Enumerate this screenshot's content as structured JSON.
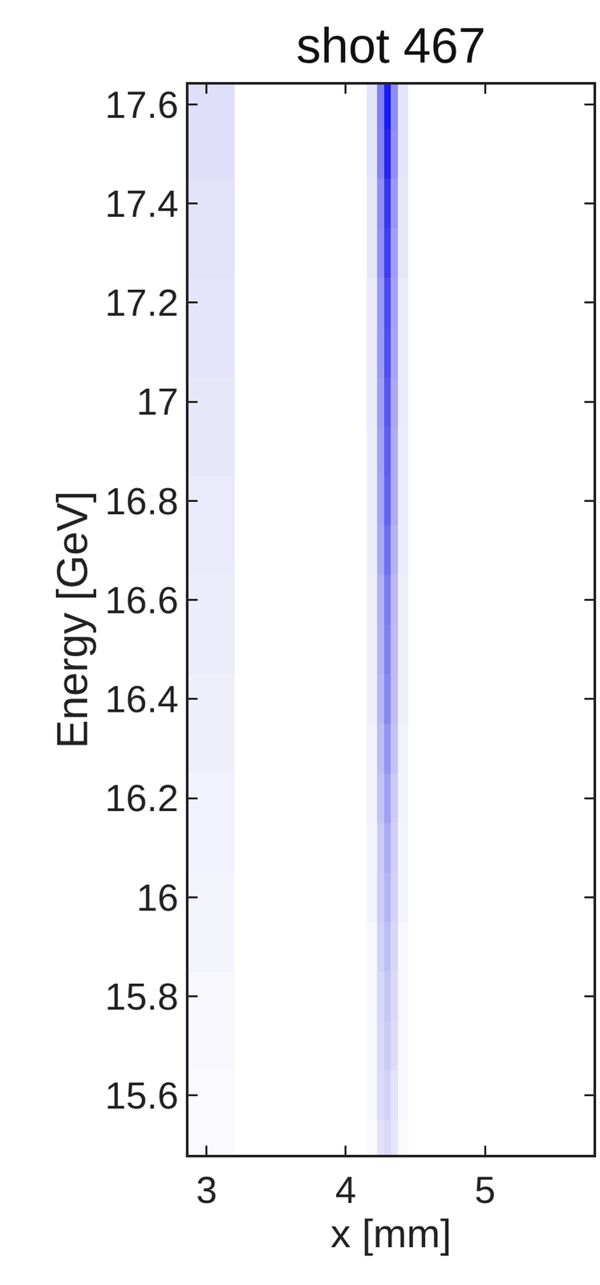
{
  "chart_data": {
    "type": "heatmap",
    "title": "shot 467",
    "x_label": "x [mm]",
    "y_label": "Energy [GeV]",
    "color": "#1a1aee",
    "x": [
      3.0,
      3.4,
      3.8,
      4.1,
      4.2,
      4.25,
      4.3,
      4.35,
      4.4,
      4.5,
      4.8,
      5.2,
      5.6
    ],
    "y": [
      15.5,
      15.6,
      15.7,
      15.8,
      15.9,
      16.0,
      16.1,
      16.2,
      16.3,
      16.4,
      16.5,
      16.6,
      16.7,
      16.8,
      16.9,
      17.0,
      17.1,
      17.2,
      17.3,
      17.4,
      17.5,
      17.6
    ],
    "z": [
      [
        0.1,
        0.08,
        0.08,
        0.08,
        0.1,
        0.19,
        0.22,
        0.18,
        0.1,
        0.08,
        0.08,
        0.08,
        0.08
      ],
      [
        0.1,
        0.08,
        0.08,
        0.08,
        0.11,
        0.21,
        0.25,
        0.19,
        0.11,
        0.08,
        0.08,
        0.08,
        0.08
      ],
      [
        0.11,
        0.08,
        0.08,
        0.08,
        0.11,
        0.22,
        0.28,
        0.21,
        0.11,
        0.08,
        0.08,
        0.08,
        0.08
      ],
      [
        0.11,
        0.08,
        0.08,
        0.08,
        0.11,
        0.23,
        0.3,
        0.22,
        0.11,
        0.08,
        0.08,
        0.08,
        0.08
      ],
      [
        0.12,
        0.08,
        0.08,
        0.08,
        0.11,
        0.25,
        0.33,
        0.23,
        0.11,
        0.08,
        0.08,
        0.08,
        0.08
      ],
      [
        0.12,
        0.08,
        0.08,
        0.08,
        0.12,
        0.27,
        0.37,
        0.25,
        0.12,
        0.08,
        0.08,
        0.08,
        0.08
      ],
      [
        0.13,
        0.08,
        0.08,
        0.08,
        0.12,
        0.28,
        0.4,
        0.26,
        0.12,
        0.08,
        0.08,
        0.08,
        0.08
      ],
      [
        0.13,
        0.08,
        0.08,
        0.08,
        0.13,
        0.31,
        0.45,
        0.28,
        0.13,
        0.08,
        0.08,
        0.08,
        0.08
      ],
      [
        0.14,
        0.08,
        0.08,
        0.08,
        0.13,
        0.33,
        0.5,
        0.31,
        0.13,
        0.08,
        0.08,
        0.08,
        0.08
      ],
      [
        0.14,
        0.08,
        0.08,
        0.08,
        0.14,
        0.36,
        0.55,
        0.33,
        0.14,
        0.08,
        0.08,
        0.08,
        0.08
      ],
      [
        0.15,
        0.08,
        0.08,
        0.08,
        0.14,
        0.37,
        0.58,
        0.34,
        0.14,
        0.08,
        0.08,
        0.08,
        0.08
      ],
      [
        0.15,
        0.08,
        0.08,
        0.08,
        0.14,
        0.38,
        0.6,
        0.35,
        0.14,
        0.08,
        0.08,
        0.08,
        0.08
      ],
      [
        0.16,
        0.08,
        0.08,
        0.08,
        0.15,
        0.41,
        0.65,
        0.37,
        0.15,
        0.08,
        0.08,
        0.08,
        0.08
      ],
      [
        0.16,
        0.08,
        0.08,
        0.08,
        0.15,
        0.43,
        0.7,
        0.4,
        0.15,
        0.08,
        0.08,
        0.08,
        0.08
      ],
      [
        0.17,
        0.08,
        0.08,
        0.08,
        0.15,
        0.44,
        0.72,
        0.4,
        0.15,
        0.08,
        0.08,
        0.08,
        0.08
      ],
      [
        0.17,
        0.08,
        0.08,
        0.08,
        0.16,
        0.46,
        0.75,
        0.42,
        0.16,
        0.08,
        0.08,
        0.08,
        0.08
      ],
      [
        0.18,
        0.08,
        0.08,
        0.08,
        0.16,
        0.47,
        0.78,
        0.43,
        0.16,
        0.08,
        0.08,
        0.08,
        0.08
      ],
      [
        0.18,
        0.08,
        0.08,
        0.08,
        0.16,
        0.48,
        0.8,
        0.44,
        0.16,
        0.08,
        0.08,
        0.08,
        0.08
      ],
      [
        0.19,
        0.08,
        0.08,
        0.08,
        0.17,
        0.51,
        0.85,
        0.46,
        0.17,
        0.08,
        0.08,
        0.08,
        0.08
      ],
      [
        0.19,
        0.08,
        0.08,
        0.08,
        0.17,
        0.52,
        0.88,
        0.48,
        0.17,
        0.08,
        0.08,
        0.08,
        0.08
      ],
      [
        0.2,
        0.08,
        0.08,
        0.08,
        0.18,
        0.56,
        0.95,
        0.51,
        0.18,
        0.08,
        0.08,
        0.08,
        0.08
      ],
      [
        0.2,
        0.08,
        0.08,
        0.08,
        0.18,
        0.58,
        1.0,
        0.53,
        0.18,
        0.08,
        0.08,
        0.08,
        0.08
      ]
    ],
    "xlim": [
      2.87,
      5.78
    ],
    "ylim": [
      15.48,
      17.64
    ],
    "xticks": [
      3,
      4,
      5
    ],
    "yticks": [
      15.6,
      15.8,
      16,
      16.2,
      16.4,
      16.6,
      16.8,
      17,
      17.2,
      17.4,
      17.6
    ]
  }
}
